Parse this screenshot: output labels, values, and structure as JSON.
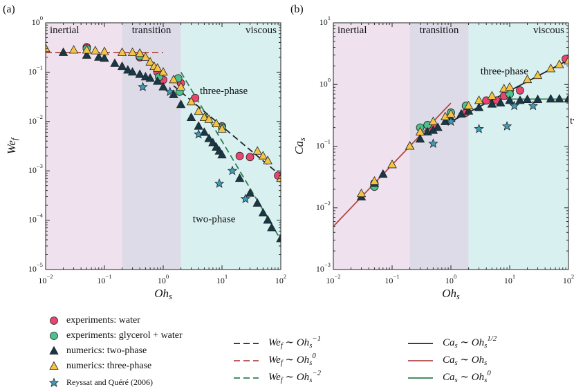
{
  "chart_data": [
    {
      "type": "scatter",
      "panel": "(a)",
      "xlabel": "Oh_s",
      "ylabel": "We_f",
      "log": true,
      "xlim": [
        0.01,
        100
      ],
      "ylim": [
        1e-05,
        1
      ],
      "xticks": [
        {
          "value": 0.01,
          "label": "10^{−2}"
        },
        {
          "value": 0.1,
          "label": "10^{−1}"
        },
        {
          "value": 1,
          "label": "10^{0}"
        },
        {
          "value": 10,
          "label": "10^{1}"
        },
        {
          "value": 100,
          "label": "10^{2}"
        }
      ],
      "yticks": [
        {
          "value": 1e-05,
          "label": "10^{−5}"
        },
        {
          "value": 0.0001,
          "label": "10^{−4}"
        },
        {
          "value": 0.001,
          "label": "10^{−3}"
        },
        {
          "value": 0.01,
          "label": "10^{−2}"
        },
        {
          "value": 0.1,
          "label": "10^{−1}"
        },
        {
          "value": 1,
          "label": "10^{0}"
        }
      ],
      "regions": [
        {
          "label": "inertial",
          "from": 0.01,
          "to": 0.2,
          "color": "#efe2ee"
        },
        {
          "label": "transition",
          "from": 0.2,
          "to": 2,
          "color": "#dedbe8"
        },
        {
          "label": "viscous",
          "from": 2,
          "to": 100,
          "color": "#d9f0f0"
        }
      ],
      "annotations": [
        "three-phase",
        "two-phase"
      ],
      "series": [
        {
          "name": "experiments: water",
          "marker": "circle",
          "color": "#e8466e",
          "x": [
            0.05,
            0.4,
            0.8,
            1.0,
            2,
            3.5,
            10,
            20,
            30,
            90
          ],
          "values": [
            0.32,
            0.2,
            0.1,
            0.07,
            0.06,
            0.03,
            0.008,
            0.002,
            0.0019,
            0.0008
          ]
        },
        {
          "name": "experiments: glycerol + water",
          "marker": "circle",
          "color": "#4cc08f",
          "x": [
            0.05,
            0.4,
            0.85,
            1.8,
            1.9,
            10
          ],
          "values": [
            0.3,
            0.21,
            0.08,
            0.075,
            0.04,
            0.0075
          ]
        },
        {
          "name": "numerics: two-phase",
          "marker": "triangle",
          "color": "#173848",
          "x": [
            0.01,
            0.02,
            0.05,
            0.08,
            0.1,
            0.15,
            0.2,
            0.25,
            0.3,
            0.4,
            0.5,
            0.6,
            0.8,
            1,
            1.5,
            2,
            3,
            4,
            5,
            6,
            7,
            8,
            9,
            10,
            20,
            30,
            40,
            50,
            60,
            70,
            100
          ],
          "values": [
            0.3,
            0.25,
            0.22,
            0.2,
            0.19,
            0.15,
            0.13,
            0.11,
            0.1,
            0.09,
            0.08,
            0.075,
            0.065,
            0.05,
            0.035,
            0.022,
            0.012,
            0.008,
            0.006,
            0.0045,
            0.0037,
            0.003,
            0.0025,
            0.0021,
            0.0007,
            0.00035,
            0.00022,
            0.00014,
            0.0001,
            7e-05,
            4.2e-05
          ]
        },
        {
          "name": "numerics: three-phase",
          "marker": "triangle",
          "color": "#f6c445",
          "x": [
            0.01,
            0.03,
            0.05,
            0.07,
            0.1,
            0.2,
            0.3,
            0.4,
            0.5,
            0.6,
            0.7,
            0.8,
            1,
            1.5,
            2,
            3,
            4,
            5,
            6,
            8,
            10,
            40,
            50,
            60,
            100
          ],
          "values": [
            0.3,
            0.28,
            0.28,
            0.27,
            0.26,
            0.25,
            0.25,
            0.24,
            0.2,
            0.16,
            0.13,
            0.12,
            0.1,
            0.07,
            0.05,
            0.025,
            0.016,
            0.012,
            0.011,
            0.009,
            0.007,
            0.0025,
            0.002,
            0.0016,
            0.0007
          ]
        },
        {
          "name": "Reyssat and Quéré (2006)",
          "marker": "star",
          "color": "#3d9cba",
          "x": [
            0.45,
            1.3,
            4,
            9,
            15,
            25
          ],
          "values": [
            0.05,
            0.04,
            0.0055,
            0.00055,
            0.001,
            0.00027
          ]
        },
        {
          "name": "We_f ∼ Oh_s^{−1}",
          "line": "dashed",
          "color": "#222222",
          "x": [
            1.5,
            100
          ],
          "values": [
            0.053,
            0.0008
          ]
        },
        {
          "name": "We_f ∼ Oh_s^{0}",
          "line": "dashed",
          "color": "#b04a44",
          "x": [
            0.01,
            1
          ],
          "values": [
            0.25,
            0.25
          ]
        },
        {
          "name": "We_f ∼ Oh_s^{−2}",
          "line": "dashed",
          "color": "#2e7d4f",
          "x": [
            2,
            100
          ],
          "values": [
            0.1,
            4e-05
          ]
        }
      ]
    },
    {
      "type": "scatter",
      "panel": "(b)",
      "xlabel": "Oh_s",
      "ylabel": "Ca_s",
      "log": true,
      "xlim": [
        0.01,
        100
      ],
      "ylim": [
        0.001,
        10
      ],
      "xticks": [
        {
          "value": 0.01,
          "label": "10^{−2}"
        },
        {
          "value": 0.1,
          "label": "10^{−1}"
        },
        {
          "value": 1,
          "label": "10^{0}"
        },
        {
          "value": 10,
          "label": "10^{1}"
        },
        {
          "value": 100,
          "label": "10^{2}"
        }
      ],
      "yticks": [
        {
          "value": 0.001,
          "label": "10^{−3}"
        },
        {
          "value": 0.01,
          "label": "10^{−2}"
        },
        {
          "value": 0.1,
          "label": "10^{−1}"
        },
        {
          "value": 1,
          "label": "10^{0}"
        },
        {
          "value": 10,
          "label": "10^{1}"
        }
      ],
      "regions": [
        {
          "label": "inertial",
          "from": 0.01,
          "to": 0.2,
          "color": "#efe2ee"
        },
        {
          "label": "transition",
          "from": 0.2,
          "to": 2,
          "color": "#dedbe8"
        },
        {
          "label": "viscous",
          "from": 2,
          "to": 100,
          "color": "#d9f0f0"
        }
      ],
      "annotations": [
        "three-phase",
        "two-phase"
      ],
      "series": [
        {
          "marker": "circle",
          "color": "#e8466e",
          "x": [
            0.05,
            0.5,
            1.8,
            4,
            6,
            8,
            10,
            15,
            90
          ],
          "values": [
            0.025,
            0.2,
            0.35,
            0.55,
            0.55,
            0.65,
            0.8,
            0.8,
            2.6
          ]
        },
        {
          "marker": "circle",
          "color": "#4cc08f",
          "x": [
            0.05,
            0.3,
            0.4,
            1,
            1.8,
            10
          ],
          "values": [
            0.022,
            0.2,
            0.22,
            0.35,
            0.45,
            0.7
          ]
        },
        {
          "marker": "triangle",
          "color": "#173848",
          "x": [
            0.03,
            0.05,
            0.07,
            0.1,
            0.2,
            0.3,
            0.4,
            0.5,
            0.6,
            0.8,
            1,
            1.5,
            2,
            3,
            5,
            7,
            10,
            15,
            20,
            30,
            50,
            70,
            100
          ],
          "values": [
            0.015,
            0.025,
            0.035,
            0.05,
            0.1,
            0.13,
            0.17,
            0.18,
            0.2,
            0.25,
            0.28,
            0.33,
            0.37,
            0.42,
            0.48,
            0.5,
            0.55,
            0.55,
            0.57,
            0.57,
            0.58,
            0.58,
            0.58
          ]
        },
        {
          "marker": "triangle",
          "color": "#f6c445",
          "x": [
            0.03,
            0.05,
            0.1,
            0.2,
            0.3,
            0.5,
            0.8,
            1,
            2,
            3,
            5,
            8,
            10,
            20,
            30,
            50,
            70,
            100
          ],
          "values": [
            0.017,
            0.027,
            0.05,
            0.1,
            0.17,
            0.25,
            0.3,
            0.33,
            0.45,
            0.55,
            0.65,
            0.85,
            0.9,
            1.2,
            1.4,
            1.8,
            2.1,
            2.4
          ]
        },
        {
          "marker": "star",
          "color": "#3d9cba",
          "x": [
            0.5,
            1,
            3,
            9,
            12,
            25
          ],
          "values": [
            0.11,
            0.25,
            0.19,
            0.21,
            0.45,
            0.45
          ]
        },
        {
          "name": "Ca_s ∼ Oh_s^{1/2}",
          "line": "solid",
          "color": "#222222",
          "x": [
            1,
            100
          ],
          "values": [
            0.25,
            2.5
          ]
        },
        {
          "name": "Ca_s ∼ Oh_s",
          "line": "solid",
          "color": "#b04a44",
          "x": [
            0.01,
            1
          ],
          "values": [
            0.005,
            0.5
          ]
        },
        {
          "name": "Ca_s ∼ Oh_s^{0}",
          "line": "solid",
          "color": "#2e7d4f",
          "x": [
            7,
            100
          ],
          "values": [
            0.58,
            0.58
          ]
        }
      ]
    }
  ]
}
